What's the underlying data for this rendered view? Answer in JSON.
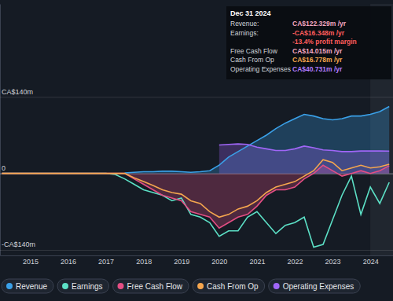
{
  "chart_data": {
    "type": "line",
    "x": [
      2014.25,
      2014.5,
      2014.75,
      2015,
      2015.25,
      2015.5,
      2015.75,
      2016,
      2016.25,
      2016.5,
      2016.75,
      2017,
      2017.25,
      2017.5,
      2017.75,
      2018,
      2018.25,
      2018.5,
      2018.75,
      2019,
      2019.25,
      2019.5,
      2019.75,
      2020,
      2020.25,
      2020.5,
      2020.75,
      2021,
      2021.25,
      2021.5,
      2021.75,
      2022,
      2022.25,
      2022.5,
      2022.75,
      2023,
      2023.25,
      2023.5,
      2023.75,
      2024,
      2024.25,
      2024.5
    ],
    "series": [
      {
        "name": "Revenue",
        "color": "#3aa0e8",
        "type": "area",
        "values": [
          null,
          null,
          null,
          null,
          null,
          null,
          null,
          null,
          null,
          null,
          null,
          null,
          null,
          1,
          2,
          3,
          3,
          4,
          4,
          3,
          2,
          3,
          5,
          15,
          30,
          40,
          50,
          60,
          70,
          82,
          92,
          100,
          108,
          105,
          100,
          98,
          100,
          105,
          105,
          108,
          113,
          122.329
        ]
      },
      {
        "name": "Earnings",
        "color": "#5ce0c6",
        "type": "line",
        "values": [
          0,
          0,
          0,
          0,
          0,
          0,
          0,
          0,
          0,
          0,
          0,
          0,
          -2,
          -10,
          -20,
          -30,
          -35,
          -40,
          -50,
          -45,
          -75,
          -80,
          -90,
          -115,
          -105,
          -105,
          -80,
          -70,
          -90,
          -110,
          -95,
          -90,
          -80,
          -135,
          -130,
          -85,
          -40,
          -5,
          -75,
          -25,
          -55,
          -16.348
        ]
      },
      {
        "name": "Free Cash Flow",
        "color": "#e44e84",
        "type": "area",
        "values": [
          0,
          0,
          0,
          0,
          0,
          0,
          0,
          0,
          0,
          0,
          0,
          0,
          0,
          0,
          -10,
          -20,
          -30,
          -40,
          -45,
          -50,
          -70,
          -75,
          -80,
          -100,
          -90,
          -80,
          -75,
          -60,
          -40,
          -30,
          -30,
          -25,
          -10,
          0,
          15,
          5,
          -5,
          0,
          5,
          0,
          5,
          14.015
        ]
      },
      {
        "name": "Cash From Op",
        "color": "#f5a64e",
        "type": "line",
        "values": [
          0,
          0,
          0,
          0,
          0,
          0,
          0,
          0,
          0,
          0,
          0,
          0,
          0,
          0,
          -8,
          -15,
          -22,
          -30,
          -35,
          -38,
          -50,
          -55,
          -70,
          -80,
          -75,
          -65,
          -60,
          -50,
          -35,
          -25,
          -20,
          -15,
          -5,
          5,
          25,
          20,
          5,
          10,
          15,
          10,
          12,
          16.778
        ]
      },
      {
        "name": "Operating Expenses",
        "color": "#a066f7",
        "type": "area",
        "values": [
          null,
          null,
          null,
          null,
          null,
          null,
          null,
          null,
          null,
          null,
          null,
          null,
          null,
          null,
          null,
          null,
          null,
          null,
          null,
          null,
          null,
          null,
          null,
          52,
          53,
          54,
          53,
          48,
          45,
          42,
          42,
          45,
          50,
          47,
          43,
          42,
          40,
          40,
          41,
          41,
          41,
          40.731
        ]
      }
    ],
    "xlim": [
      2014.2,
      2024.6
    ],
    "xticks": [
      2015,
      2016,
      2017,
      2018,
      2019,
      2020,
      2021,
      2022,
      2023,
      2024
    ],
    "ylim": [
      -150,
      310
    ],
    "yticks": [
      {
        "value": -140,
        "label": "-CA$140m"
      },
      0,
      {
        "value": 140,
        "label": "CA$140m"
      }
    ],
    "grid": true,
    "legend": "bottom",
    "annotations": {
      "title": "Dec 31 2024",
      "rows": [
        {
          "label": "Revenue:",
          "text": "CA$122.329m /yr",
          "color": "#f2a6c0"
        },
        {
          "label": "Earnings:",
          "text": "-CA$16.348m /yr",
          "color": "#ff5c5c"
        },
        {
          "text": "-13.4% profit margin",
          "color": "#ff5c5c"
        },
        {
          "label": "Free Cash Flow",
          "text": "CA$14.015m /yr",
          "color": "#f2a6c0"
        },
        {
          "label": "Cash From Op",
          "text": "CA$16.778m /yr",
          "color": "#f5a64e"
        },
        {
          "label": "Operating Expenses",
          "text": "CA$40.731m /yr",
          "color": "#b27cff"
        }
      ]
    }
  }
}
